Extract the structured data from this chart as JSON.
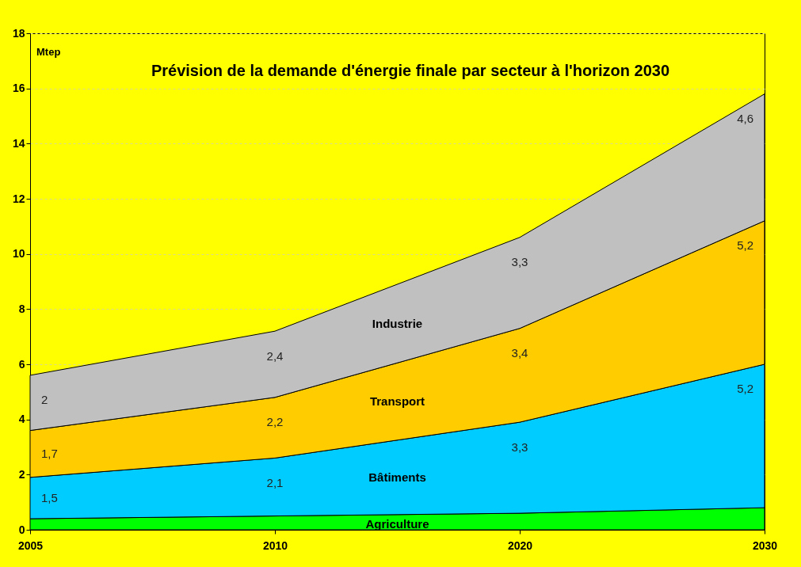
{
  "chart_data": {
    "type": "area",
    "stacked": true,
    "title": "Prévision de la demande d'énergie finale par secteur à l'horizon 2030",
    "ylabel": "Mtep",
    "categories": [
      "2005",
      "2010",
      "2020",
      "2030"
    ],
    "series": [
      {
        "name": "Agriculture",
        "color": "#00ff00",
        "values": [
          0.4,
          0.5,
          0.6,
          0.8
        ]
      },
      {
        "name": "Bâtiments",
        "color": "#00ccff",
        "values": [
          1.5,
          2.1,
          3.3,
          5.2
        ],
        "value_labels": [
          "1,5",
          "2,1",
          "3,3",
          "5,2"
        ]
      },
      {
        "name": "Transport",
        "color": "#ffcc00",
        "values": [
          1.7,
          2.2,
          3.4,
          5.2
        ],
        "value_labels": [
          "1,7",
          "2,2",
          "3,4",
          "5,2"
        ]
      },
      {
        "name": "Industrie",
        "color": "#c0c0c0",
        "values": [
          2,
          2.4,
          3.3,
          4.6
        ],
        "value_labels": [
          "2",
          "2,4",
          "3,3",
          "4,6"
        ]
      }
    ],
    "ylim": [
      0,
      18
    ],
    "yticks": [
      0,
      2,
      4,
      6,
      8,
      10,
      12,
      14,
      16,
      18
    ],
    "grid": "y"
  }
}
